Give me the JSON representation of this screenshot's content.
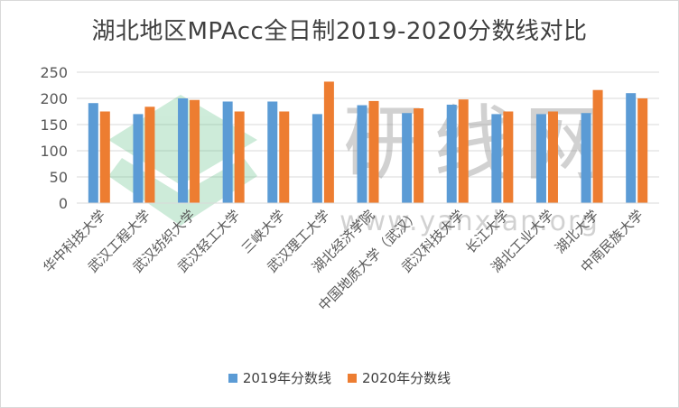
{
  "chart_data": {
    "type": "bar",
    "title": "湖北地区MPAcc全日制2019-2020分数线对比",
    "categories": [
      "华中科技大学",
      "武汉工程大学",
      "武汉纺织大学",
      "武汉轻工大学",
      "三峡大学",
      "武汉理工大学",
      "湖北经济学院",
      "中国地质大学（武汉）",
      "武汉科技大学",
      "长江大学",
      "湖北工业大学",
      "湖北大学",
      "中南民族大学"
    ],
    "series": [
      {
        "name": "2019年分数线",
        "color": "#5b9bd5",
        "values": [
          191,
          170,
          200,
          194,
          194,
          170,
          187,
          172,
          188,
          170,
          170,
          172,
          210
        ]
      },
      {
        "name": "2020年分数线",
        "color": "#ed7d31",
        "values": [
          175,
          184,
          197,
          175,
          175,
          232,
          195,
          181,
          198,
          175,
          175,
          216,
          200
        ]
      }
    ],
    "ylim": [
      0,
      250
    ],
    "yticks": [
      0,
      50,
      100,
      150,
      200,
      250
    ],
    "grid": true,
    "legend_position": "bottom",
    "watermark": {
      "text": "研线网",
      "url": "www.yanxian.org"
    }
  }
}
